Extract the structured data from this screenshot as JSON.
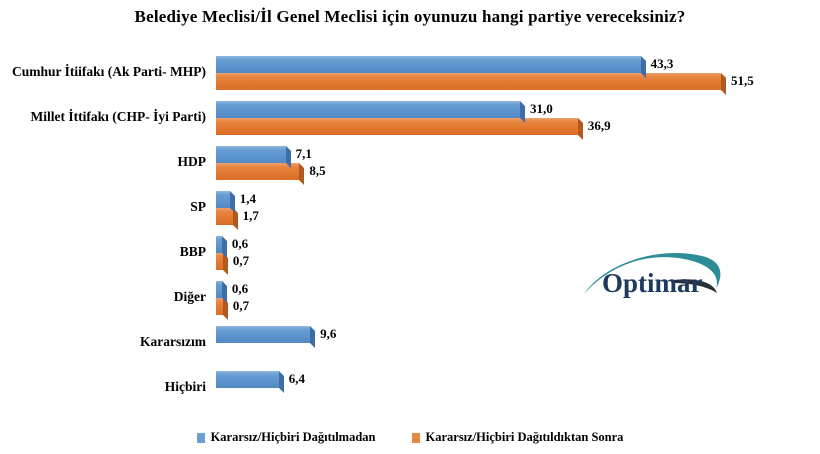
{
  "title": "Belediye Meclisi/İl Genel Meclisi için oyunuzu hangi partiye vereceksiniz?",
  "logo": {
    "text": "Optimar",
    "text_color": "#1e3a5f",
    "swoosh_color": "#2e8c96"
  },
  "legend": [
    {
      "label": "Kararsız/Hiçbiri Dağıtılmadan",
      "color": "#5b94ce"
    },
    {
      "label": "Kararsız/Hiçbiri Dağıtıldıktan Sonra",
      "color": "#e2772f"
    }
  ],
  "chart_data": {
    "type": "bar",
    "orientation": "horizontal",
    "title": "Belediye Meclisi/İl Genel Meclisi için oyunuzu hangi partiye vereceksiniz?",
    "categories": [
      "Cumhur İtiifakı (Ak Parti- MHP)",
      "Millet İttifakı (CHP- İyi Parti)",
      "HDP",
      "SP",
      "BBP",
      "Diğer",
      "Kararsızım",
      "Hiçbiri"
    ],
    "series": [
      {
        "name": "Kararsız/Hiçbiri Dağıtılmadan",
        "color": "#5b94ce",
        "values": [
          43.3,
          31.0,
          7.1,
          1.4,
          0.6,
          0.6,
          9.6,
          6.4
        ]
      },
      {
        "name": "Kararsız/Hiçbiri Dağıtıldıktan Sonra",
        "color": "#e2772f",
        "values": [
          51.5,
          36.9,
          8.5,
          1.7,
          0.7,
          0.7,
          null,
          null
        ]
      }
    ],
    "value_labels": [
      [
        "43,3",
        "51,5"
      ],
      [
        "31,0",
        "36,9"
      ],
      [
        "7,1",
        "8,5"
      ],
      [
        "1,4",
        "1,7"
      ],
      [
        "0,6",
        "0,7"
      ],
      [
        "0,6",
        "0,7"
      ],
      [
        "9,6",
        null
      ],
      [
        "6,4",
        null
      ]
    ],
    "xlim": [
      0,
      51.5
    ],
    "grid": false,
    "legend_position": "bottom",
    "value_label_decimal_separator": ","
  }
}
